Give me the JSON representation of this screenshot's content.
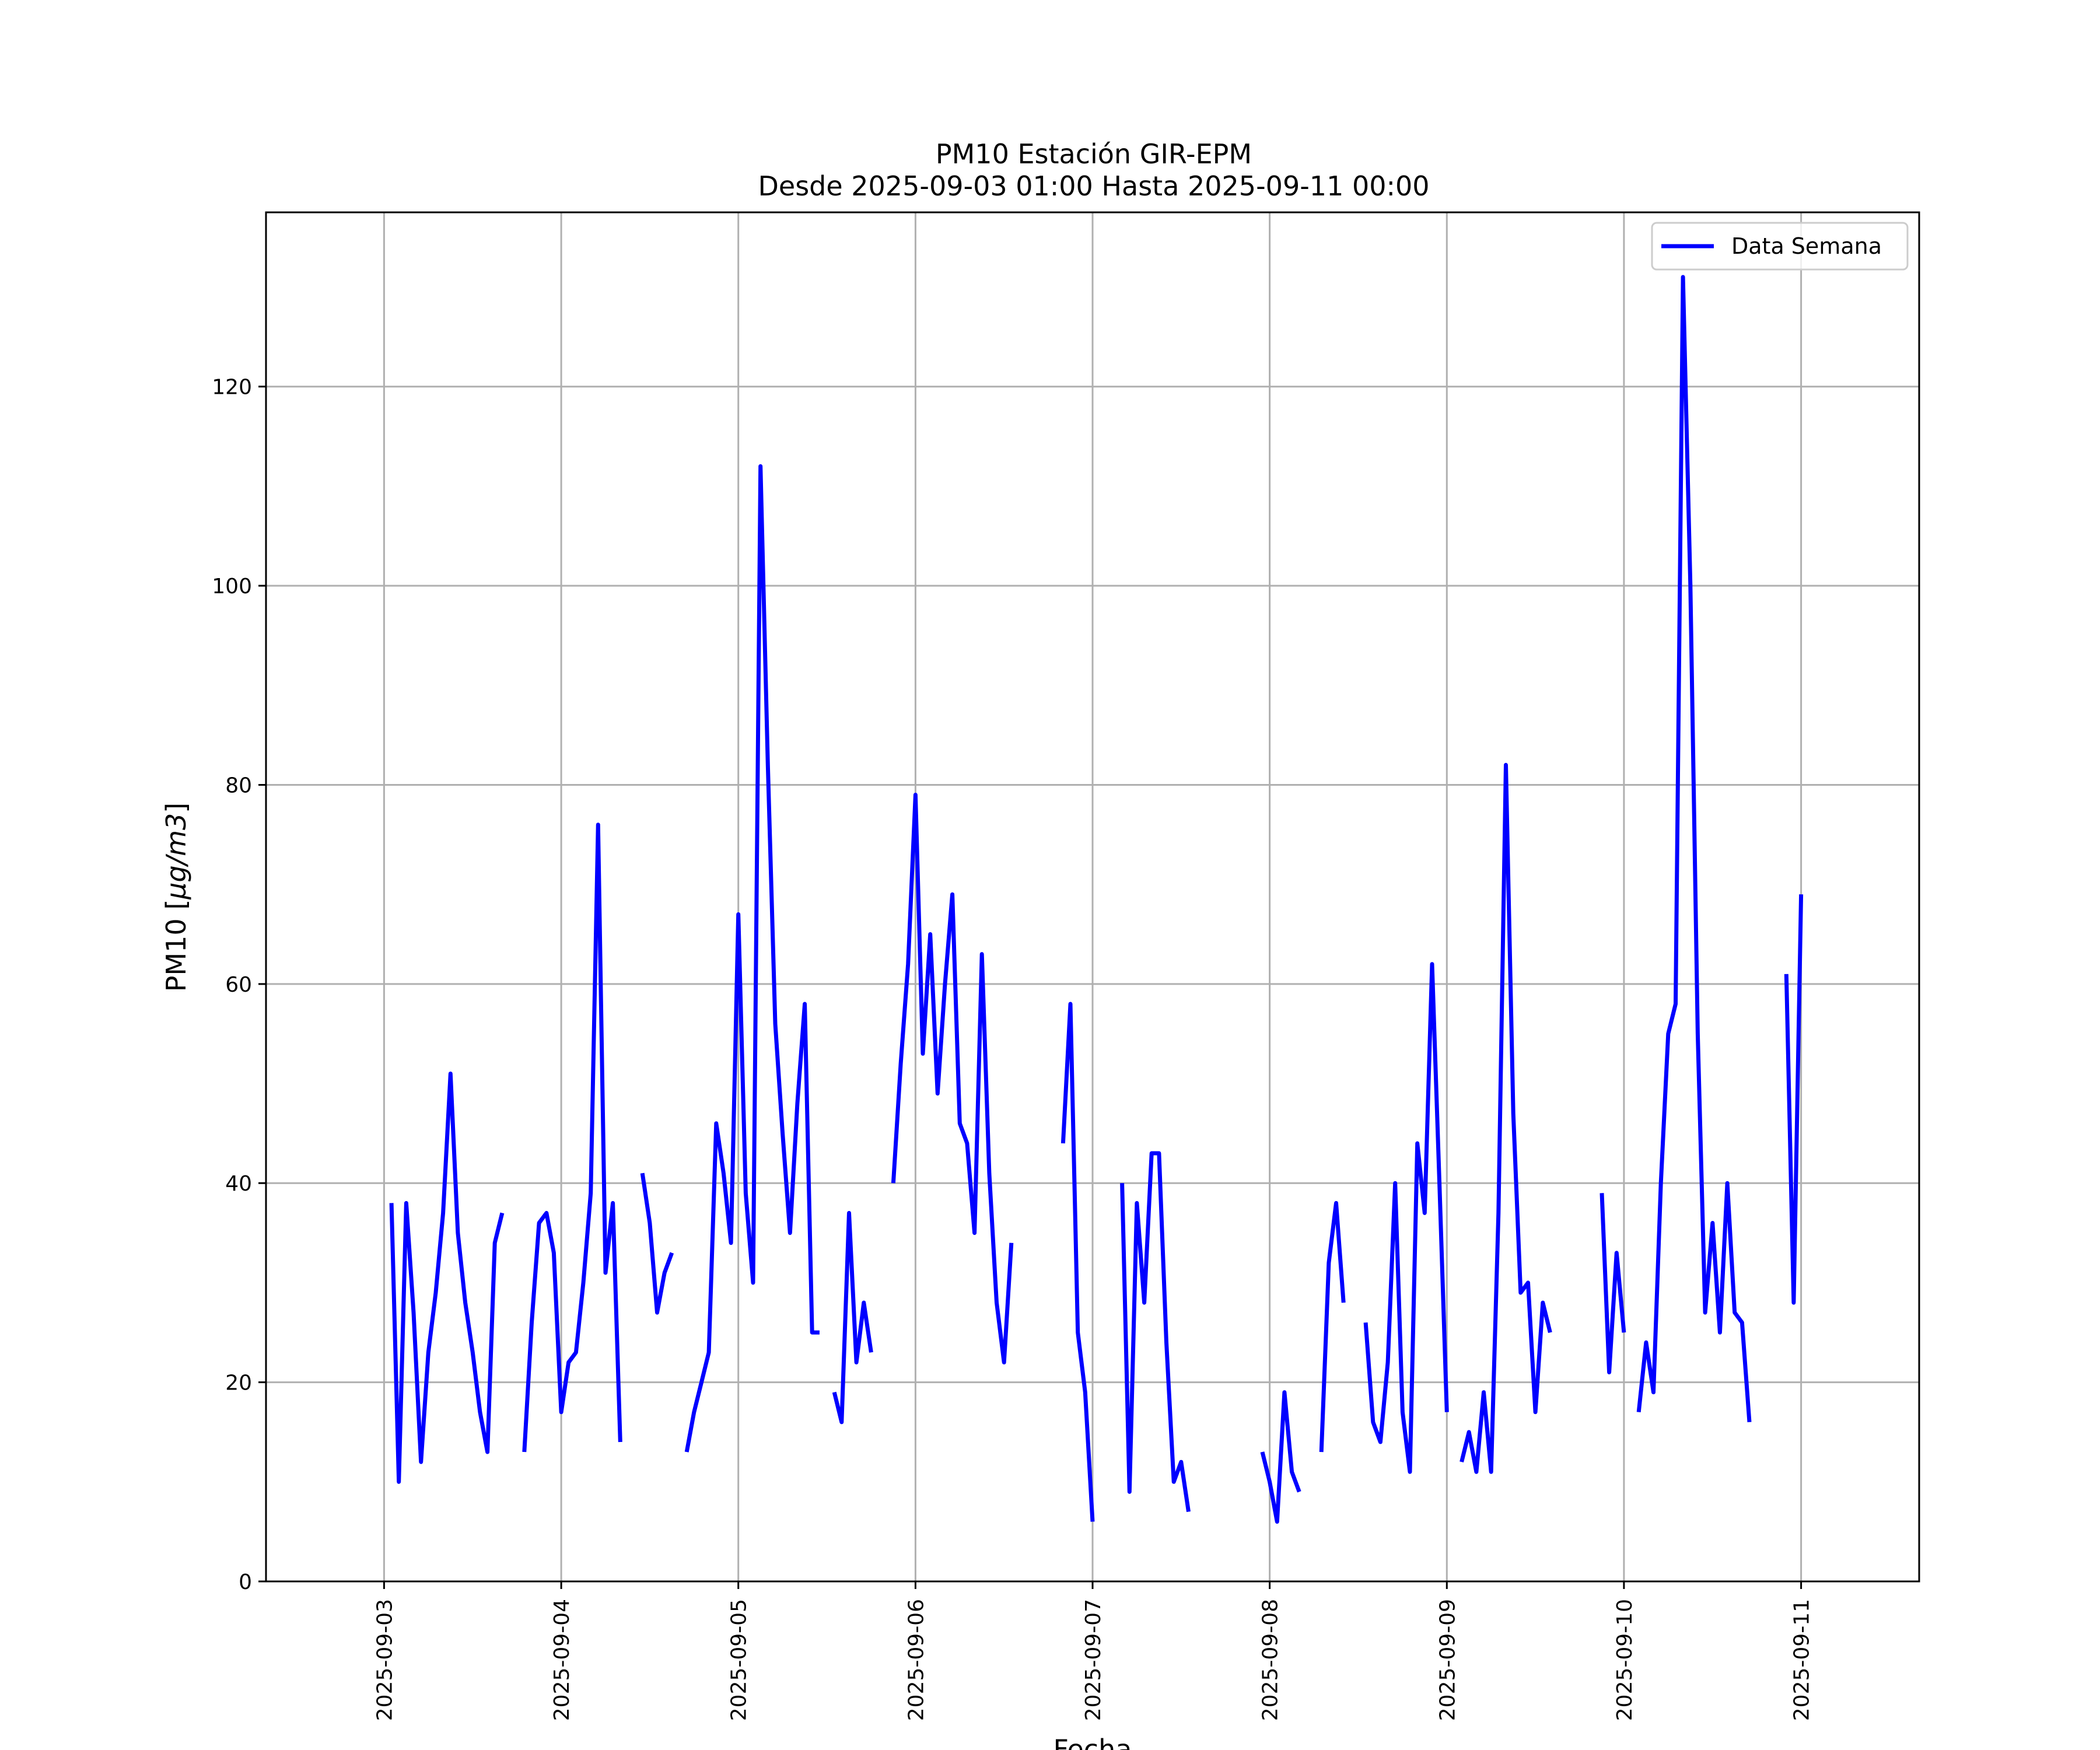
{
  "chart_data": {
    "type": "line",
    "title": "PM10 Estación GIR-EPM",
    "subtitle": "Desde 2025-09-03 01:00 Hasta 2025-09-11 00:00",
    "xlabel": "Fecha",
    "ylabel_prefix": "PM10 [",
    "ylabel_unit": "μg/m3",
    "ylabel_suffix": "]",
    "x_ticks": [
      "2025-09-03",
      "2025-09-04",
      "2025-09-05",
      "2025-09-06",
      "2025-09-07",
      "2025-09-08",
      "2025-09-09",
      "2025-09-10",
      "2025-09-11"
    ],
    "y_ticks": [
      0,
      20,
      40,
      60,
      80,
      100,
      120
    ],
    "xlim": [
      "2025-09-02 08:00",
      "2025-09-11 16:00"
    ],
    "ylim": [
      0,
      137.5
    ],
    "grid": true,
    "legend_position": "upper right",
    "series": [
      {
        "name": "Data Semana",
        "color": "#0000ff",
        "points": [
          [
            "2025-09-03 01:00",
            38
          ],
          [
            "2025-09-03 02:00",
            10
          ],
          [
            "2025-09-03 03:00",
            38
          ],
          [
            "2025-09-03 04:00",
            27
          ],
          [
            "2025-09-03 05:00",
            12
          ],
          [
            "2025-09-03 06:00",
            23
          ],
          [
            "2025-09-03 07:00",
            29
          ],
          [
            "2025-09-03 08:00",
            37
          ],
          [
            "2025-09-03 09:00",
            51
          ],
          [
            "2025-09-03 10:00",
            35
          ],
          [
            "2025-09-03 11:00",
            28
          ],
          [
            "2025-09-03 12:00",
            23
          ],
          [
            "2025-09-03 13:00",
            17
          ],
          [
            "2025-09-03 14:00",
            13
          ],
          [
            "2025-09-03 15:00",
            34
          ],
          [
            "2025-09-03 16:00",
            37
          ],
          [
            "2025-09-03 17:00",
            null
          ],
          [
            "2025-09-03 18:00",
            null
          ],
          [
            "2025-09-03 19:00",
            13
          ],
          [
            "2025-09-03 20:00",
            26
          ],
          [
            "2025-09-03 21:00",
            36
          ],
          [
            "2025-09-03 22:00",
            37
          ],
          [
            "2025-09-03 23:00",
            33
          ],
          [
            "2025-09-04 00:00",
            17
          ],
          [
            "2025-09-04 01:00",
            22
          ],
          [
            "2025-09-04 02:00",
            23
          ],
          [
            "2025-09-04 03:00",
            30
          ],
          [
            "2025-09-04 04:00",
            39
          ],
          [
            "2025-09-04 05:00",
            76
          ],
          [
            "2025-09-04 06:00",
            31
          ],
          [
            "2025-09-04 07:00",
            38
          ],
          [
            "2025-09-04 08:00",
            14
          ],
          [
            "2025-09-04 09:00",
            null
          ],
          [
            "2025-09-04 10:00",
            null
          ],
          [
            "2025-09-04 11:00",
            41
          ],
          [
            "2025-09-04 12:00",
            36
          ],
          [
            "2025-09-04 13:00",
            27
          ],
          [
            "2025-09-04 14:00",
            31
          ],
          [
            "2025-09-04 15:00",
            33
          ],
          [
            "2025-09-04 16:00",
            null
          ],
          [
            "2025-09-04 17:00",
            13
          ],
          [
            "2025-09-04 18:00",
            17
          ],
          [
            "2025-09-04 19:00",
            20
          ],
          [
            "2025-09-04 20:00",
            23
          ],
          [
            "2025-09-04 21:00",
            46
          ],
          [
            "2025-09-04 22:00",
            41
          ],
          [
            "2025-09-04 23:00",
            34
          ],
          [
            "2025-09-05 00:00",
            67
          ],
          [
            "2025-09-05 01:00",
            39
          ],
          [
            "2025-09-05 02:00",
            30
          ],
          [
            "2025-09-05 03:00",
            112
          ],
          [
            "2025-09-05 04:00",
            82
          ],
          [
            "2025-09-05 05:00",
            56
          ],
          [
            "2025-09-05 06:00",
            45
          ],
          [
            "2025-09-05 07:00",
            35
          ],
          [
            "2025-09-05 08:00",
            48
          ],
          [
            "2025-09-05 09:00",
            58
          ],
          [
            "2025-09-05 10:00",
            25
          ],
          [
            "2025-09-05 11:00",
            25
          ],
          [
            "2025-09-05 12:00",
            null
          ],
          [
            "2025-09-05 13:00",
            19
          ],
          [
            "2025-09-05 14:00",
            16
          ],
          [
            "2025-09-05 15:00",
            37
          ],
          [
            "2025-09-05 16:00",
            22
          ],
          [
            "2025-09-05 17:00",
            28
          ],
          [
            "2025-09-05 18:00",
            23
          ],
          [
            "2025-09-05 19:00",
            null
          ],
          [
            "2025-09-05 20:00",
            null
          ],
          [
            "2025-09-05 21:00",
            40
          ],
          [
            "2025-09-05 22:00",
            52
          ],
          [
            "2025-09-05 23:00",
            62
          ],
          [
            "2025-09-06 00:00",
            79
          ],
          [
            "2025-09-06 01:00",
            53
          ],
          [
            "2025-09-06 02:00",
            65
          ],
          [
            "2025-09-06 03:00",
            49
          ],
          [
            "2025-09-06 04:00",
            60
          ],
          [
            "2025-09-06 05:00",
            69
          ],
          [
            "2025-09-06 06:00",
            46
          ],
          [
            "2025-09-06 07:00",
            44
          ],
          [
            "2025-09-06 08:00",
            35
          ],
          [
            "2025-09-06 09:00",
            63
          ],
          [
            "2025-09-06 10:00",
            41
          ],
          [
            "2025-09-06 11:00",
            28
          ],
          [
            "2025-09-06 12:00",
            22
          ],
          [
            "2025-09-06 13:00",
            34
          ],
          [
            "2025-09-06 14:00",
            null
          ],
          [
            "2025-09-06 15:00",
            null
          ],
          [
            "2025-09-06 16:00",
            null
          ],
          [
            "2025-09-06 17:00",
            null
          ],
          [
            "2025-09-06 18:00",
            null
          ],
          [
            "2025-09-06 19:00",
            null
          ],
          [
            "2025-09-06 20:00",
            44
          ],
          [
            "2025-09-06 21:00",
            58
          ],
          [
            "2025-09-06 22:00",
            25
          ],
          [
            "2025-09-06 23:00",
            19
          ],
          [
            "2025-09-07 00:00",
            6
          ],
          [
            "2025-09-07 01:00",
            null
          ],
          [
            "2025-09-07 02:00",
            null
          ],
          [
            "2025-09-07 03:00",
            null
          ],
          [
            "2025-09-07 04:00",
            40
          ],
          [
            "2025-09-07 05:00",
            9
          ],
          [
            "2025-09-07 06:00",
            38
          ],
          [
            "2025-09-07 07:00",
            28
          ],
          [
            "2025-09-07 08:00",
            43
          ],
          [
            "2025-09-07 09:00",
            43
          ],
          [
            "2025-09-07 10:00",
            24
          ],
          [
            "2025-09-07 11:00",
            10
          ],
          [
            "2025-09-07 12:00",
            12
          ],
          [
            "2025-09-07 13:00",
            7
          ],
          [
            "2025-09-07 14:00",
            null
          ],
          [
            "2025-09-07 15:00",
            null
          ],
          [
            "2025-09-07 16:00",
            null
          ],
          [
            "2025-09-07 17:00",
            null
          ],
          [
            "2025-09-07 18:00",
            null
          ],
          [
            "2025-09-07 19:00",
            null
          ],
          [
            "2025-09-07 20:00",
            null
          ],
          [
            "2025-09-07 21:00",
            null
          ],
          [
            "2025-09-07 22:00",
            null
          ],
          [
            "2025-09-07 23:00",
            13
          ],
          [
            "2025-09-08 00:00",
            10
          ],
          [
            "2025-09-08 01:00",
            6
          ],
          [
            "2025-09-08 02:00",
            19
          ],
          [
            "2025-09-08 03:00",
            11
          ],
          [
            "2025-09-08 04:00",
            9
          ],
          [
            "2025-09-08 05:00",
            null
          ],
          [
            "2025-09-08 06:00",
            null
          ],
          [
            "2025-09-08 07:00",
            13
          ],
          [
            "2025-09-08 08:00",
            32
          ],
          [
            "2025-09-08 09:00",
            38
          ],
          [
            "2025-09-08 10:00",
            28
          ],
          [
            "2025-09-08 11:00",
            null
          ],
          [
            "2025-09-08 12:00",
            null
          ],
          [
            "2025-09-08 13:00",
            26
          ],
          [
            "2025-09-08 14:00",
            16
          ],
          [
            "2025-09-08 15:00",
            14
          ],
          [
            "2025-09-08 16:00",
            22
          ],
          [
            "2025-09-08 17:00",
            40
          ],
          [
            "2025-09-08 18:00",
            17
          ],
          [
            "2025-09-08 19:00",
            11
          ],
          [
            "2025-09-08 20:00",
            44
          ],
          [
            "2025-09-08 21:00",
            37
          ],
          [
            "2025-09-08 22:00",
            62
          ],
          [
            "2025-09-08 23:00",
            40
          ],
          [
            "2025-09-09 00:00",
            17
          ],
          [
            "2025-09-09 01:00",
            null
          ],
          [
            "2025-09-09 02:00",
            12
          ],
          [
            "2025-09-09 03:00",
            15
          ],
          [
            "2025-09-09 04:00",
            11
          ],
          [
            "2025-09-09 05:00",
            19
          ],
          [
            "2025-09-09 06:00",
            11
          ],
          [
            "2025-09-09 07:00",
            37
          ],
          [
            "2025-09-09 08:00",
            82
          ],
          [
            "2025-09-09 09:00",
            47
          ],
          [
            "2025-09-09 10:00",
            29
          ],
          [
            "2025-09-09 11:00",
            30
          ],
          [
            "2025-09-09 12:00",
            17
          ],
          [
            "2025-09-09 13:00",
            28
          ],
          [
            "2025-09-09 14:00",
            25
          ],
          [
            "2025-09-09 15:00",
            null
          ],
          [
            "2025-09-09 16:00",
            null
          ],
          [
            "2025-09-09 17:00",
            null
          ],
          [
            "2025-09-09 18:00",
            null
          ],
          [
            "2025-09-09 19:00",
            null
          ],
          [
            "2025-09-09 20:00",
            null
          ],
          [
            "2025-09-09 21:00",
            39
          ],
          [
            "2025-09-09 22:00",
            21
          ],
          [
            "2025-09-09 23:00",
            33
          ],
          [
            "2025-09-10 00:00",
            25
          ],
          [
            "2025-09-10 01:00",
            null
          ],
          [
            "2025-09-10 02:00",
            17
          ],
          [
            "2025-09-10 03:00",
            24
          ],
          [
            "2025-09-10 04:00",
            19
          ],
          [
            "2025-09-10 05:00",
            40
          ],
          [
            "2025-09-10 06:00",
            55
          ],
          [
            "2025-09-10 07:00",
            58
          ],
          [
            "2025-09-10 08:00",
            131
          ],
          [
            "2025-09-10 09:00",
            100
          ],
          [
            "2025-09-10 10:00",
            55
          ],
          [
            "2025-09-10 11:00",
            27
          ],
          [
            "2025-09-10 12:00",
            36
          ],
          [
            "2025-09-10 13:00",
            25
          ],
          [
            "2025-09-10 14:00",
            40
          ],
          [
            "2025-09-10 15:00",
            27
          ],
          [
            "2025-09-10 16:00",
            26
          ],
          [
            "2025-09-10 17:00",
            16
          ],
          [
            "2025-09-10 18:00",
            null
          ],
          [
            "2025-09-10 19:00",
            null
          ],
          [
            "2025-09-10 20:00",
            null
          ],
          [
            "2025-09-10 21:00",
            null
          ],
          [
            "2025-09-10 22:00",
            61
          ],
          [
            "2025-09-10 23:00",
            28
          ],
          [
            "2025-09-11 00:00",
            69
          ]
        ]
      }
    ]
  }
}
